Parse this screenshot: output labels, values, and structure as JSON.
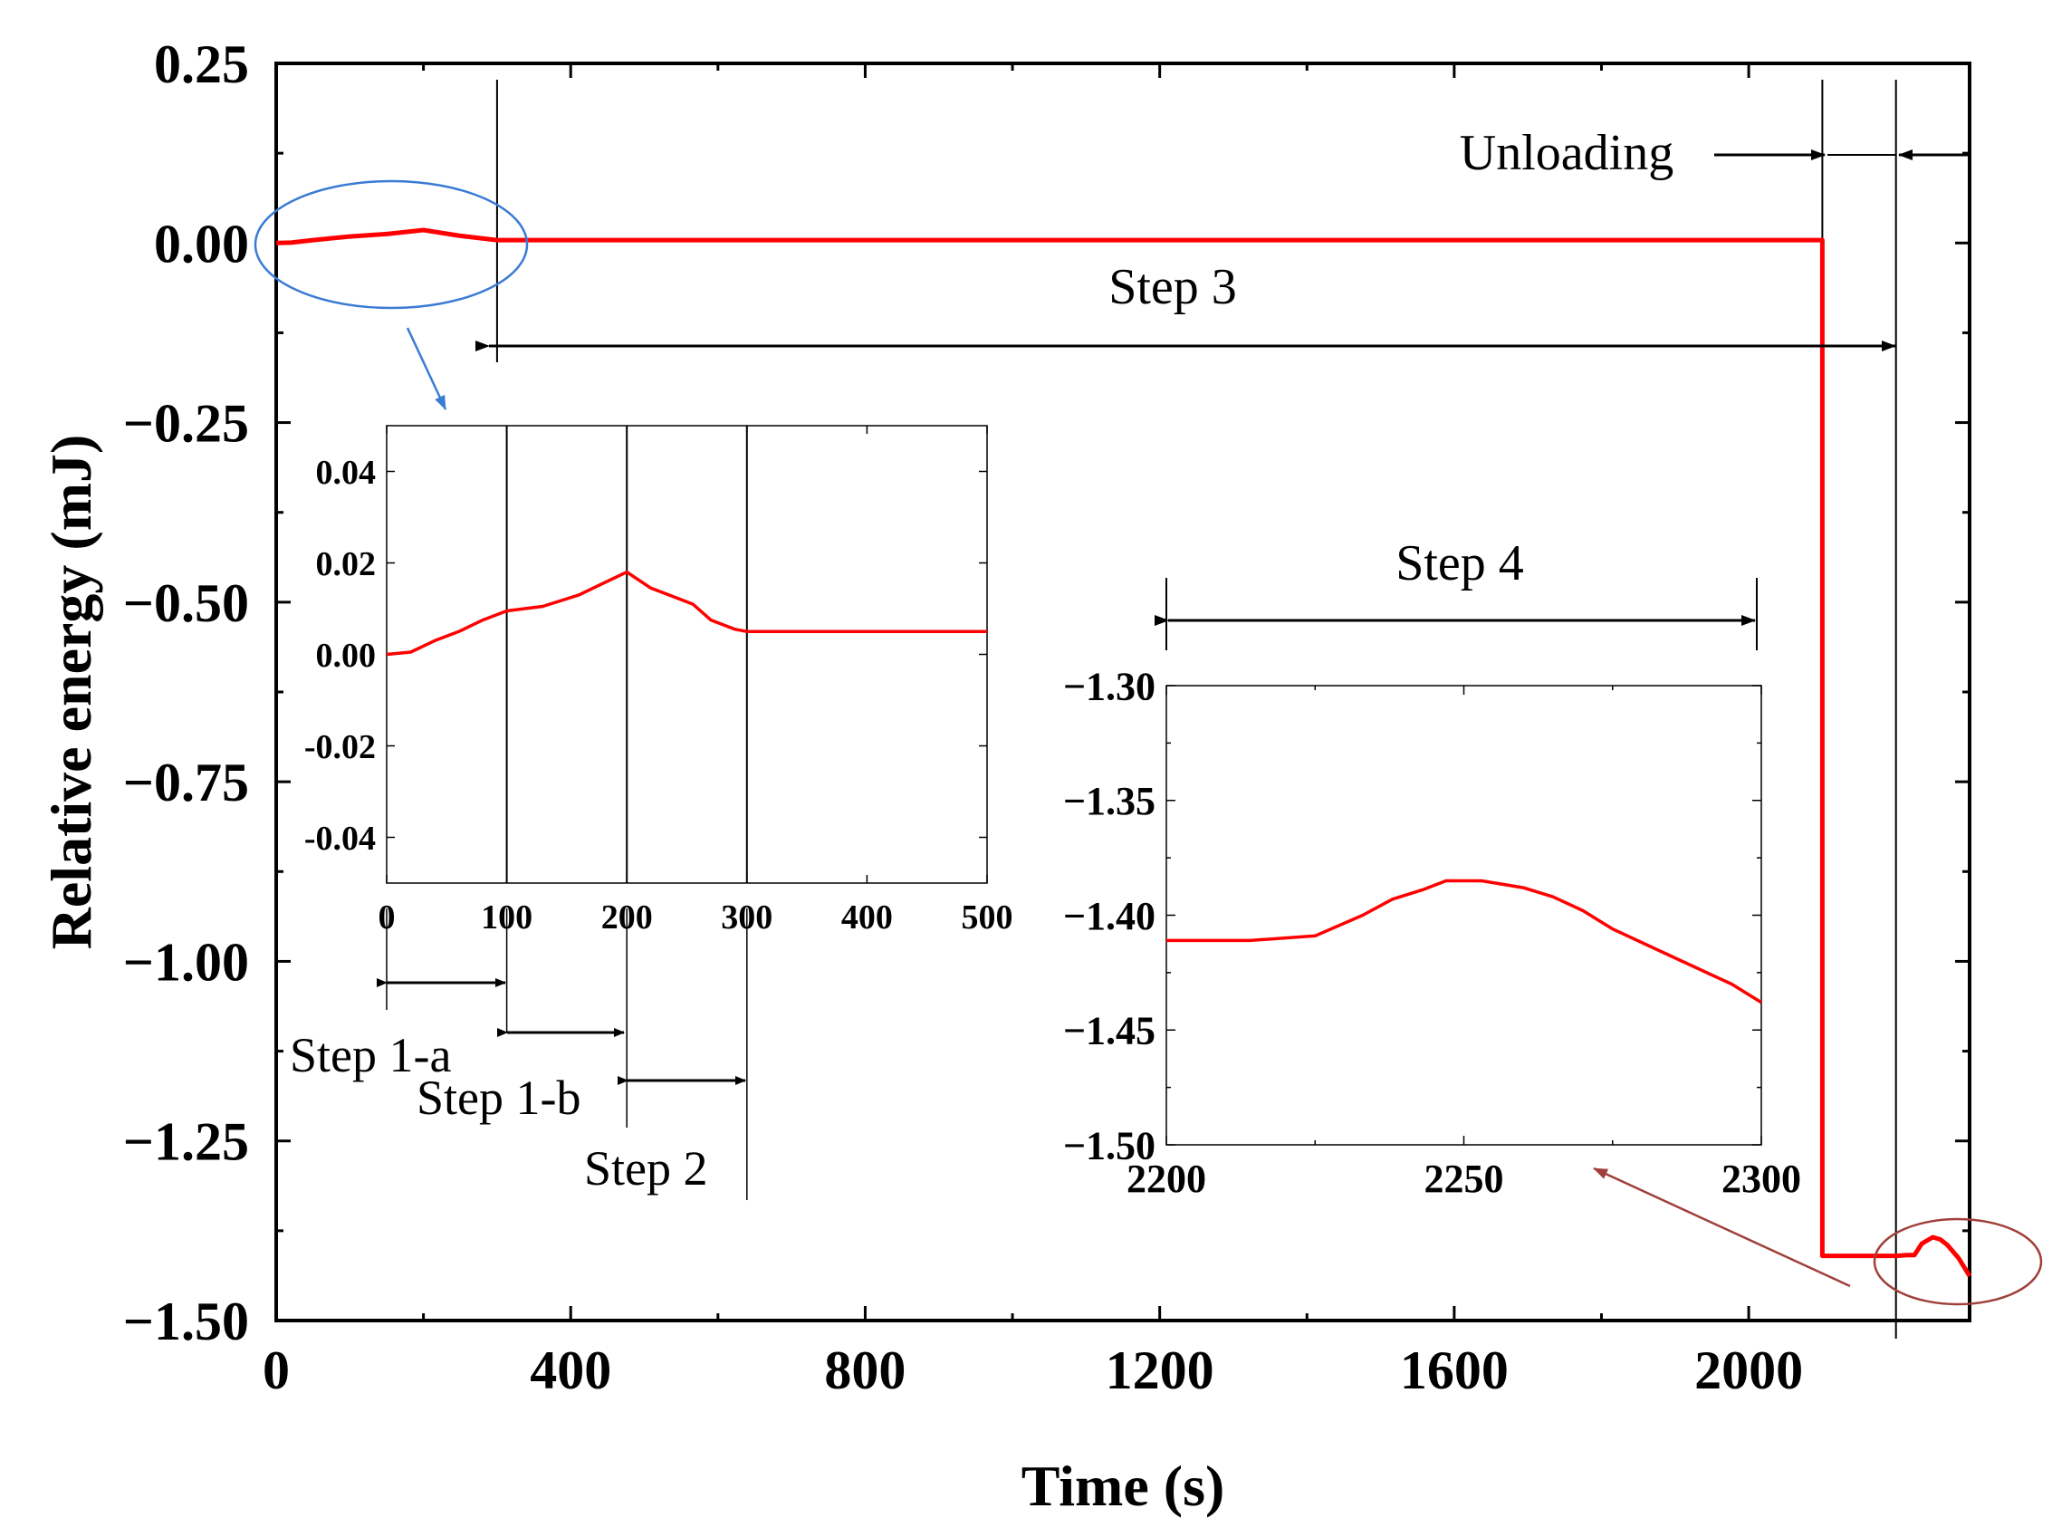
{
  "colors": {
    "series": "#ff0000",
    "axis": "#000000",
    "callout_blue": "#3a7bd5",
    "callout_brown": "#a0403a"
  },
  "chart_data": [
    {
      "id": "main",
      "type": "line",
      "title": "",
      "xlabel": "Time (s)",
      "ylabel": "Relative energy (mJ)",
      "xlim": [
        0,
        2300
      ],
      "ylim": [
        -1.5,
        0.25
      ],
      "xticks": [
        0,
        400,
        800,
        1200,
        1600,
        2000
      ],
      "xtick_labels": [
        "0",
        "400",
        "800",
        "1200",
        "1600",
        "2000"
      ],
      "yticks": [
        0.25,
        0.0,
        -0.25,
        -0.5,
        -0.75,
        -1.0,
        -1.25,
        -1.5
      ],
      "ytick_labels": [
        "0.25",
        "0.00",
        "−0.25",
        "−0.50",
        "−0.75",
        "−1.00",
        "−1.25",
        "−1.50"
      ],
      "grid": false,
      "series": [
        {
          "name": "Relative energy",
          "x": [
            0,
            20,
            50,
            100,
            150,
            200,
            250,
            300,
            2100,
            2100,
            2200,
            2215,
            2225,
            2235,
            2250,
            2260,
            2270,
            2285,
            2300
          ],
          "y": [
            0.0,
            0.0005,
            0.004,
            0.009,
            0.0125,
            0.018,
            0.01,
            0.004,
            0.004,
            -1.41,
            -1.41,
            -1.409,
            -1.409,
            -1.393,
            -1.384,
            -1.387,
            -1.395,
            -1.413,
            -1.438
          ]
        }
      ],
      "markers_x": [
        300,
        2100,
        2200
      ],
      "annotations": {
        "step3": "Step 3",
        "unloading": "Unloading"
      }
    },
    {
      "id": "inset_left",
      "type": "line",
      "xlim": [
        0,
        500
      ],
      "ylim": [
        -0.05,
        0.05
      ],
      "xticks": [
        0,
        100,
        200,
        300,
        400,
        500
      ],
      "xtick_labels": [
        "0",
        "100",
        "200",
        "300",
        "400",
        "500"
      ],
      "yticks": [
        0.04,
        0.02,
        0.0,
        -0.02,
        -0.04
      ],
      "ytick_labels": [
        "0.04",
        "0.02",
        "0.00",
        "-0.02",
        "-0.04"
      ],
      "series": [
        {
          "name": "Relative energy",
          "x": [
            0,
            20,
            40,
            60,
            80,
            100,
            130,
            160,
            180,
            200,
            220,
            240,
            255,
            270,
            290,
            300,
            500
          ],
          "y": [
            0.0,
            0.0005,
            0.003,
            0.005,
            0.0075,
            0.0095,
            0.0105,
            0.013,
            0.0155,
            0.018,
            0.0145,
            0.0125,
            0.011,
            0.0075,
            0.0055,
            0.005,
            0.005
          ]
        }
      ],
      "markers_x": [
        100,
        200,
        300
      ],
      "annotations": {
        "step1a": "Step 1-a",
        "step1b": "Step 1-b",
        "step2": "Step 2"
      }
    },
    {
      "id": "inset_right",
      "type": "line",
      "xlim": [
        2200,
        2300
      ],
      "ylim": [
        -1.5,
        -1.3
      ],
      "xticks": [
        2200,
        2250,
        2300
      ],
      "xtick_labels": [
        "2200",
        "2250",
        "2300"
      ],
      "yticks": [
        -1.3,
        -1.35,
        -1.4,
        -1.45,
        -1.5
      ],
      "ytick_labels": [
        "−1.30",
        "−1.35",
        "−1.40",
        "−1.45",
        "−1.50"
      ],
      "series": [
        {
          "name": "Relative energy",
          "x": [
            2200,
            2214,
            2225,
            2233,
            2238,
            2243,
            2247,
            2253,
            2260,
            2265,
            2270,
            2275,
            2285,
            2295,
            2300
          ],
          "y": [
            -1.411,
            -1.411,
            -1.409,
            -1.4,
            -1.393,
            -1.389,
            -1.385,
            -1.385,
            -1.388,
            -1.392,
            -1.398,
            -1.406,
            -1.418,
            -1.43,
            -1.438
          ]
        }
      ],
      "annotations": {
        "step4": "Step 4"
      }
    }
  ]
}
